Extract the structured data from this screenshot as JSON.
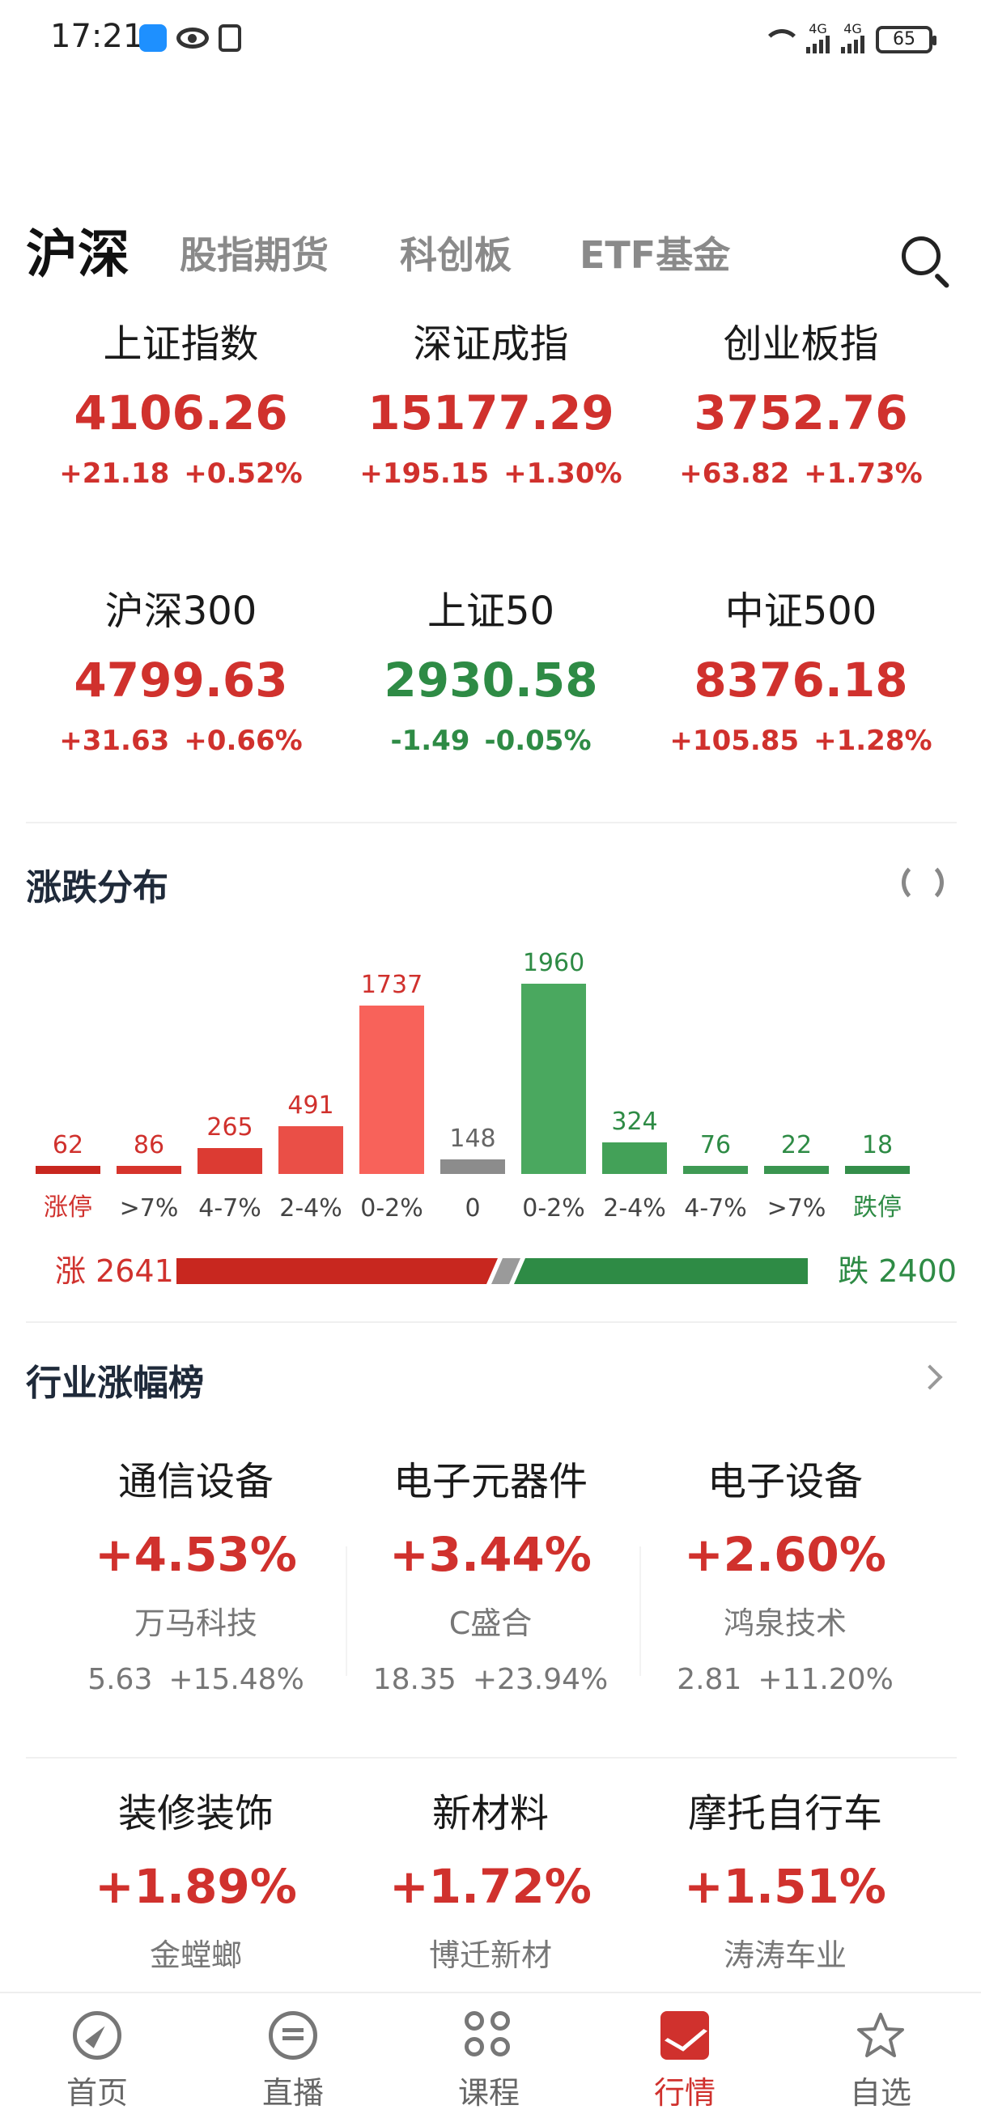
{
  "status_bar": {
    "time": "17:21",
    "battery": "65",
    "net1": "4G",
    "net2": "4G"
  },
  "tabs": [
    {
      "label": "沪深",
      "active": true
    },
    {
      "label": "股指期货",
      "active": false
    },
    {
      "label": "科创板",
      "active": false
    },
    {
      "label": "ETF基金",
      "active": false
    }
  ],
  "indices": [
    {
      "name": "上证指数",
      "value": "4106.26",
      "change": "+21.18",
      "percent": "+0.52%",
      "trend": "up"
    },
    {
      "name": "深证成指",
      "value": "15177.29",
      "change": "+195.15",
      "percent": "+1.30%",
      "trend": "up"
    },
    {
      "name": "创业板指",
      "value": "3752.76",
      "change": "+63.82",
      "percent": "+1.73%",
      "trend": "up"
    },
    {
      "name": "沪深300",
      "value": "4799.63",
      "change": "+31.63",
      "percent": "+0.66%",
      "trend": "up"
    },
    {
      "name": "上证50",
      "value": "2930.58",
      "change": "-1.49",
      "percent": "-0.05%",
      "trend": "down"
    },
    {
      "name": "中证500",
      "value": "8376.18",
      "change": "+105.85",
      "percent": "+1.28%",
      "trend": "up"
    }
  ],
  "distribution": {
    "title": "涨跌分布",
    "summary": {
      "up_label": "涨 2641",
      "down_label": "跌 2400",
      "up": 2641,
      "flat": 148,
      "down": 2400
    }
  },
  "chart_data": {
    "type": "bar",
    "categories": [
      "涨停",
      ">7%",
      "4-7%",
      "2-4%",
      "0-2%",
      "0",
      "0-2%",
      "2-4%",
      "4-7%",
      ">7%",
      "跌停"
    ],
    "values": [
      62,
      86,
      265,
      491,
      1737,
      148,
      1960,
      324,
      76,
      22,
      18
    ],
    "colors": [
      "#c8271f",
      "#d6342c",
      "#dc3b33",
      "#ea4f47",
      "#f8625a",
      "#8c8c8c",
      "#4aa85f",
      "#43a158",
      "#3f9a54",
      "#3a9550",
      "#348e4a"
    ],
    "label_colors": [
      "#d0312d",
      "#444444",
      "#444444",
      "#444444",
      "#444444",
      "#444444",
      "#444444",
      "#444444",
      "#444444",
      "#444444",
      "#2e8b45"
    ],
    "value_colors": [
      "#d0312d",
      "#d0312d",
      "#d0312d",
      "#d0312d",
      "#d0312d",
      "#666666",
      "#2e8b45",
      "#2e8b45",
      "#2e8b45",
      "#2e8b45",
      "#2e8b45"
    ]
  },
  "industry": {
    "title": "行业涨幅榜",
    "items": [
      {
        "name": "通信设备",
        "percent": "+4.53%",
        "stock": "万马科技",
        "price": "5.63",
        "stock_pct": "+15.48%"
      },
      {
        "name": "电子元器件",
        "percent": "+3.44%",
        "stock": "C盛合",
        "price": "18.35",
        "stock_pct": "+23.94%"
      },
      {
        "name": "电子设备",
        "percent": "+2.60%",
        "stock": "鸿泉技术",
        "price": "2.81",
        "stock_pct": "+11.20%"
      },
      {
        "name": "装修装饰",
        "percent": "+1.89%",
        "stock": "金螳螂",
        "price": "",
        "stock_pct": ""
      },
      {
        "name": "新材料",
        "percent": "+1.72%",
        "stock": "博迁新材",
        "price": "",
        "stock_pct": ""
      },
      {
        "name": "摩托自行车",
        "percent": "+1.51%",
        "stock": "涛涛车业",
        "price": "",
        "stock_pct": ""
      }
    ]
  },
  "bottom_nav": [
    {
      "label": "首页",
      "icon": "compass-icon",
      "active": false
    },
    {
      "label": "直播",
      "icon": "chat-icon",
      "active": false
    },
    {
      "label": "课程",
      "icon": "grid-icon",
      "active": false
    },
    {
      "label": "行情",
      "icon": "trend-icon",
      "active": true
    },
    {
      "label": "自选",
      "icon": "star-icon",
      "active": false
    }
  ]
}
